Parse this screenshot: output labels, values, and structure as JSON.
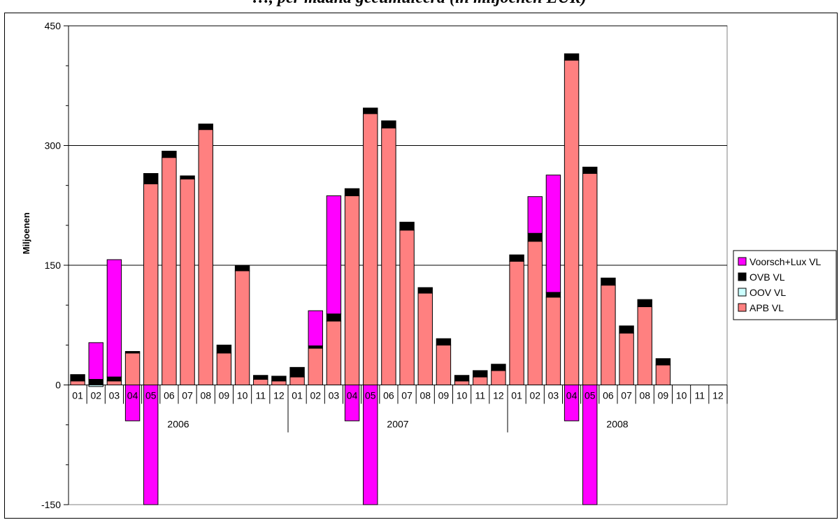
{
  "chart_data": {
    "type": "bar",
    "stacked": true,
    "title": "…, per maand gecumuleerd (in miljoenen EUR)",
    "ylabel": "Miljoenen",
    "xlabel": "",
    "ylim": [
      -150,
      450
    ],
    "yticks": [
      -150,
      0,
      150,
      300,
      450
    ],
    "grid": true,
    "legend_position": "right",
    "years": [
      {
        "label": "2006",
        "months": [
          "01",
          "02",
          "03",
          "04",
          "05",
          "06",
          "07",
          "08",
          "09",
          "10",
          "11",
          "12"
        ]
      },
      {
        "label": "2007",
        "months": [
          "01",
          "02",
          "03",
          "04",
          "05",
          "06",
          "07",
          "08",
          "09",
          "10",
          "11",
          "12"
        ]
      },
      {
        "label": "2008",
        "months": [
          "01",
          "02",
          "03",
          "04",
          "05",
          "06",
          "07",
          "08",
          "09",
          "10",
          "11",
          "12"
        ]
      }
    ],
    "series": [
      {
        "name": "APB VL",
        "color": "#ff8080",
        "values": [
          5,
          0,
          5,
          40,
          252,
          285,
          258,
          320,
          40,
          143,
          7,
          5,
          10,
          46,
          80,
          237,
          340,
          322,
          194,
          115,
          50,
          5,
          10,
          18,
          155,
          180,
          110,
          407,
          265,
          125,
          65,
          98,
          25,
          0,
          0,
          0
        ]
      },
      {
        "name": "OOV VL",
        "color": "#ccffff",
        "values": [
          0,
          -2,
          0,
          0,
          0,
          0,
          0,
          0,
          0,
          0,
          0,
          0,
          0,
          0,
          0,
          0,
          0,
          0,
          0,
          0,
          0,
          0,
          0,
          0,
          0,
          0,
          0,
          0,
          0,
          0,
          0,
          0,
          0,
          0,
          0,
          0
        ]
      },
      {
        "name": "OVB VL",
        "color": "#000000",
        "values": [
          8,
          7,
          5,
          2,
          13,
          8,
          4,
          7,
          10,
          7,
          5,
          6,
          12,
          3,
          9,
          9,
          7,
          9,
          10,
          7,
          8,
          7,
          8,
          8,
          8,
          10,
          6,
          8,
          8,
          9,
          9,
          9,
          8,
          0,
          0,
          0
        ]
      },
      {
        "name": "Voorsch+Lux VL",
        "color": "#ff00ff",
        "values": [
          0,
          46,
          147,
          -45,
          -150,
          0,
          0,
          0,
          0,
          0,
          0,
          0,
          0,
          44,
          148,
          -45,
          -150,
          0,
          0,
          0,
          0,
          0,
          0,
          0,
          0,
          46,
          147,
          -45,
          -150,
          0,
          0,
          0,
          0,
          0,
          0,
          0
        ]
      }
    ]
  }
}
